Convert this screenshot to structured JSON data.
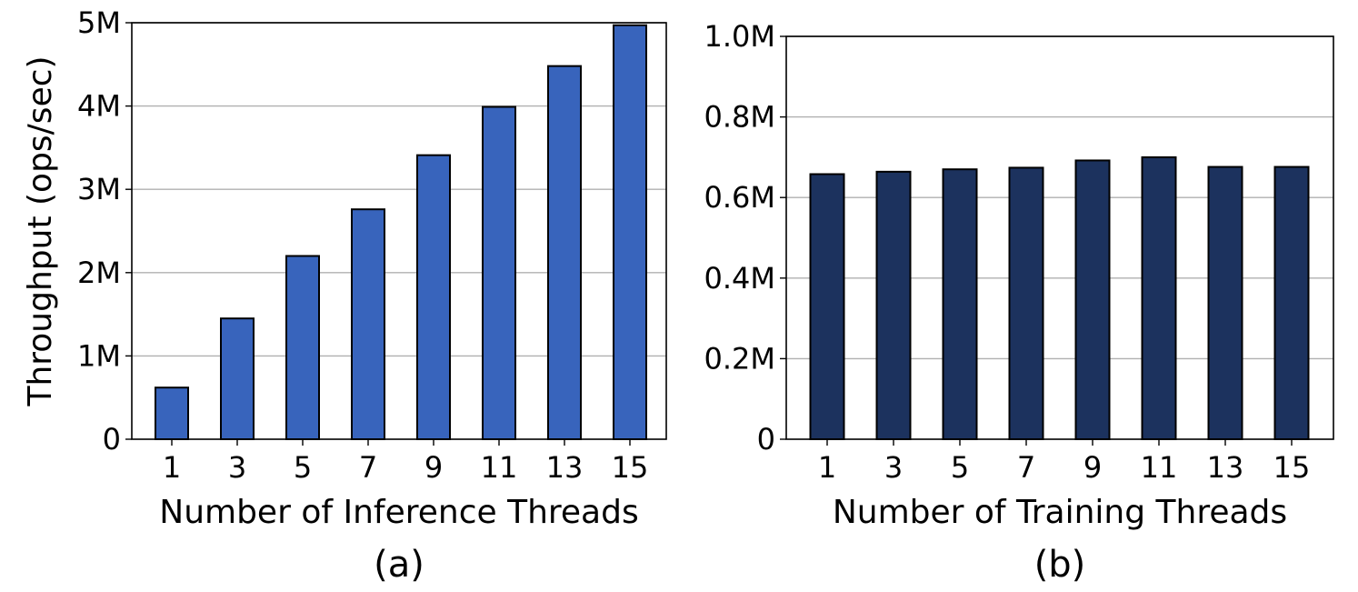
{
  "chart_data": [
    {
      "type": "bar",
      "panel_label": "(a)",
      "categories": [
        "1",
        "3",
        "5",
        "7",
        "9",
        "11",
        "13",
        "15"
      ],
      "values": [
        620000,
        1450000,
        2200000,
        2760000,
        3410000,
        3990000,
        4480000,
        4970000
      ],
      "xlabel": "Number of Inference Threads",
      "ylabel": "Throughput (ops/sec)",
      "ylim": [
        0,
        5000000
      ],
      "yticks": [
        0,
        1000000,
        2000000,
        3000000,
        4000000,
        5000000
      ],
      "ytick_labels": [
        "0",
        "1M",
        "2M",
        "3M",
        "4M",
        "5M"
      ],
      "grid": "y",
      "color": "#3864bc"
    },
    {
      "type": "bar",
      "panel_label": "(b)",
      "categories": [
        "1",
        "3",
        "5",
        "7",
        "9",
        "11",
        "13",
        "15"
      ],
      "values": [
        658000,
        664000,
        670000,
        674000,
        692000,
        700000,
        676000,
        676000
      ],
      "xlabel": "Number of Training Threads",
      "ylabel": "",
      "ylim": [
        0,
        1000000
      ],
      "yticks": [
        0,
        200000,
        400000,
        600000,
        800000,
        1000000
      ],
      "ytick_labels": [
        "0",
        "0.2M",
        "0.4M",
        "0.6M",
        "0.8M",
        "1.0M"
      ],
      "grid": "y",
      "color": "#1c325e"
    }
  ]
}
